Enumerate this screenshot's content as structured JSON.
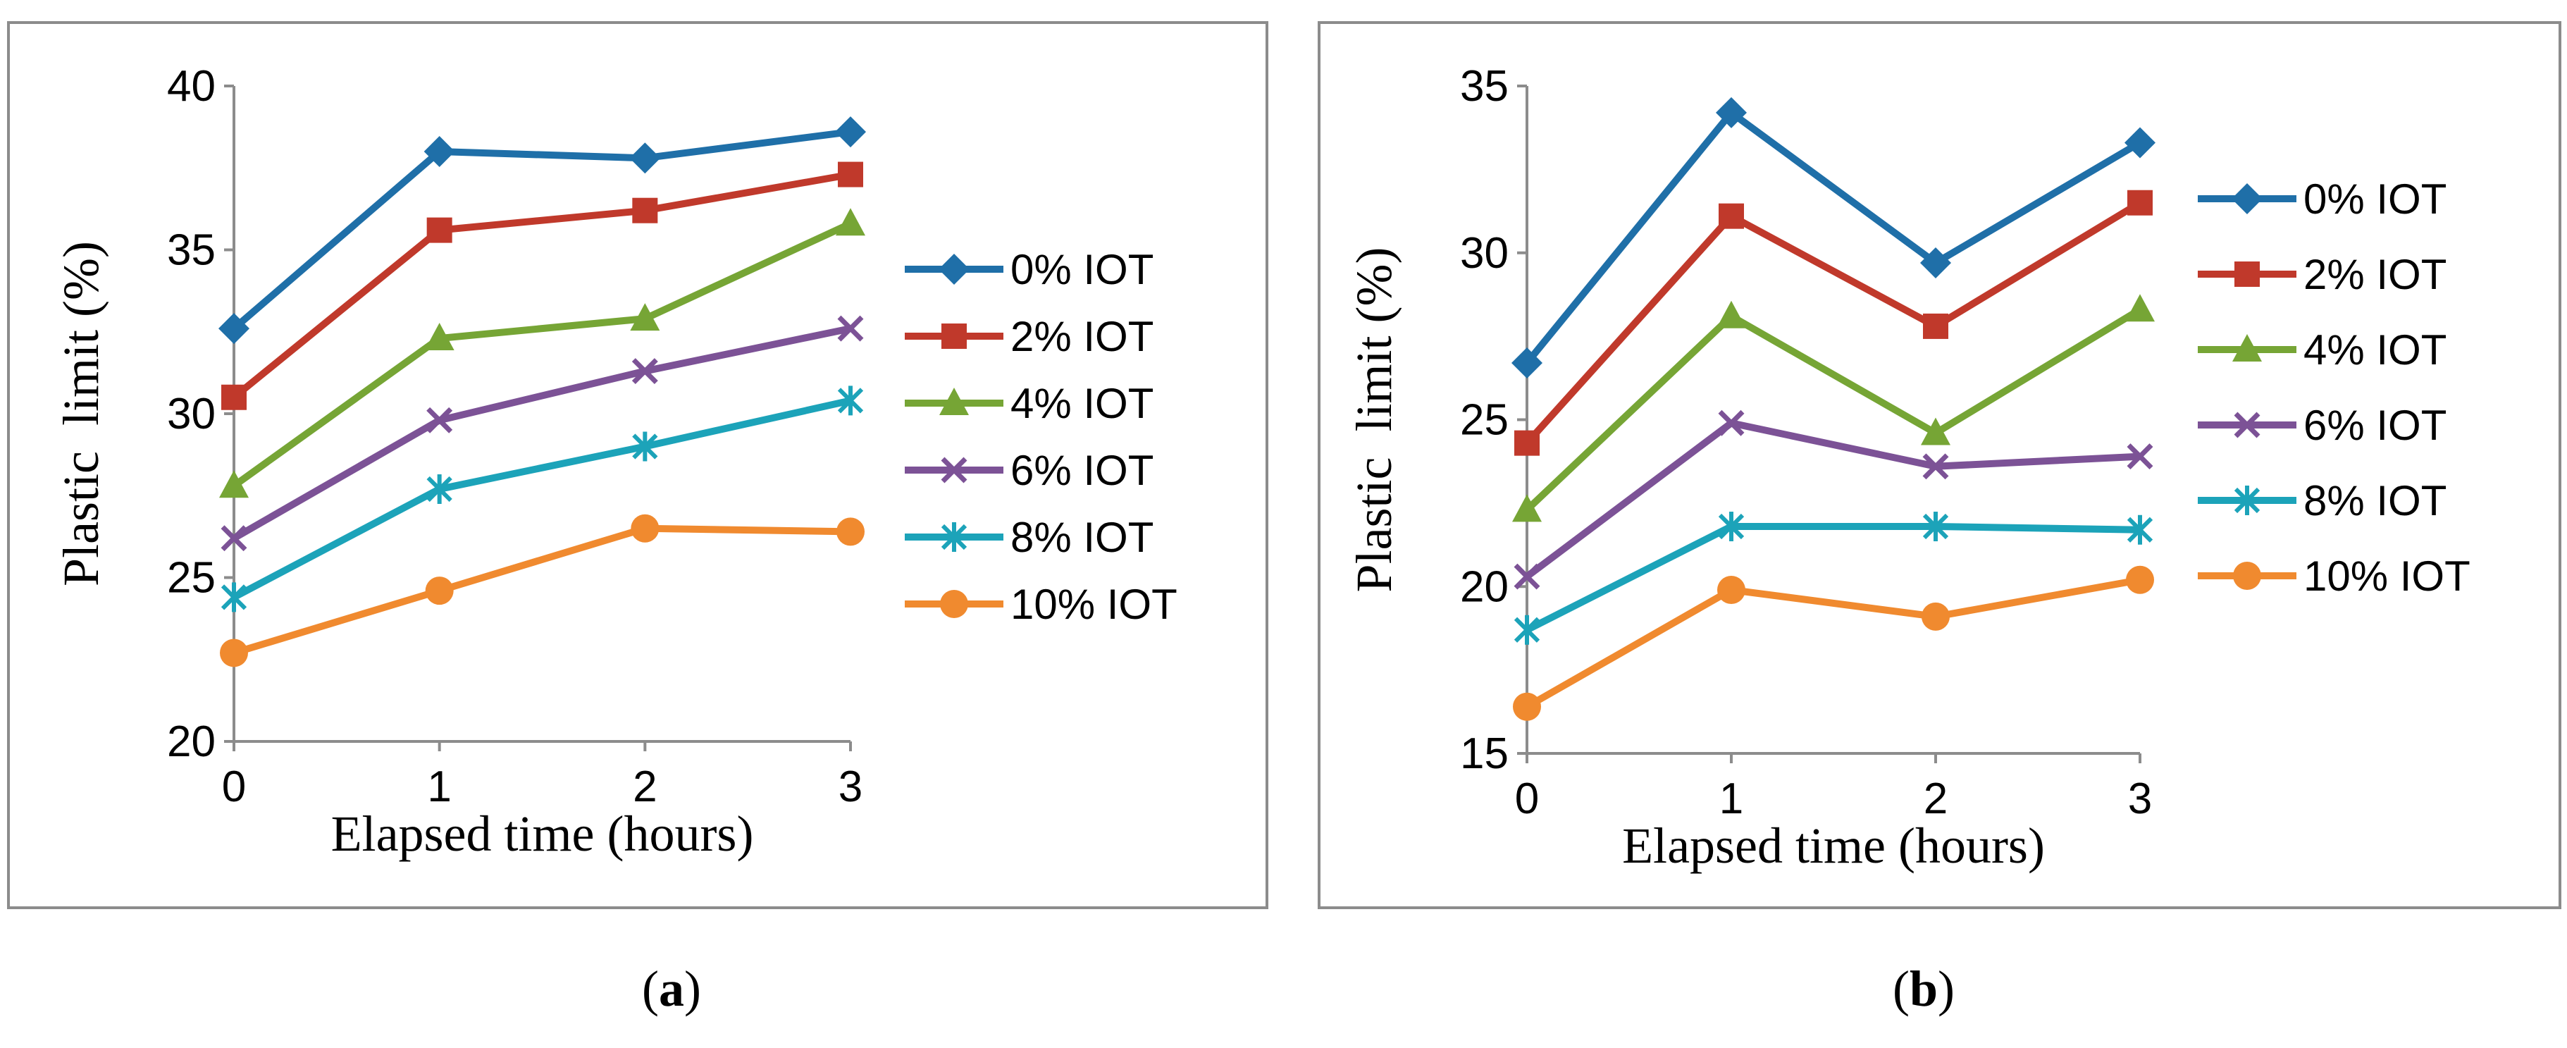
{
  "colors": {
    "series": [
      "#1F6FA8",
      "#C0392B",
      "#76A535",
      "#7C5296",
      "#1CA3B9",
      "#F08A2F"
    ],
    "axis": "#8c8c8c"
  },
  "chart_data": [
    {
      "type": "line",
      "panel_label": "a",
      "x": [
        0,
        1,
        2,
        3
      ],
      "xlabel": "Elapsed time (hours)",
      "ylabel": "Plastic  limit (%)",
      "ylim": [
        20,
        40
      ],
      "yticks": [
        20,
        25,
        30,
        35,
        40
      ],
      "xticks": [
        0,
        1,
        2,
        3
      ],
      "legend_position": "right",
      "series": [
        {
          "name": "0% IOT",
          "marker": "diamond",
          "values": [
            32.6,
            38.0,
            37.8,
            38.6
          ]
        },
        {
          "name": "2% IOT",
          "marker": "square",
          "values": [
            30.5,
            35.6,
            36.2,
            37.3
          ]
        },
        {
          "name": "4% IOT",
          "marker": "triangle",
          "values": [
            27.8,
            32.3,
            32.9,
            35.8
          ]
        },
        {
          "name": "6% IOT",
          "marker": "x",
          "values": [
            26.2,
            29.8,
            31.3,
            32.6
          ]
        },
        {
          "name": "8% IOT",
          "marker": "star",
          "values": [
            24.4,
            27.7,
            29.0,
            30.4
          ]
        },
        {
          "name": "10% IOT",
          "marker": "circle",
          "values": [
            22.7,
            24.6,
            26.5,
            26.4
          ]
        }
      ]
    },
    {
      "type": "line",
      "panel_label": "b",
      "x": [
        0,
        1,
        2,
        3
      ],
      "xlabel": "Elapsed time (hours)",
      "ylabel": "Plastic  limit (%)",
      "ylim": [
        15,
        35
      ],
      "yticks": [
        15,
        20,
        25,
        30,
        35
      ],
      "xticks": [
        0,
        1,
        2,
        3
      ],
      "legend_position": "right",
      "series": [
        {
          "name": "0% IOT",
          "marker": "diamond",
          "values": [
            26.7,
            34.2,
            29.7,
            33.3
          ]
        },
        {
          "name": "2% IOT",
          "marker": "square",
          "values": [
            24.3,
            31.1,
            27.8,
            31.5
          ]
        },
        {
          "name": "4% IOT",
          "marker": "triangle",
          "values": [
            22.3,
            28.1,
            24.6,
            28.3
          ]
        },
        {
          "name": "6% IOT",
          "marker": "x",
          "values": [
            20.3,
            24.9,
            23.6,
            23.9
          ]
        },
        {
          "name": "8% IOT",
          "marker": "star",
          "values": [
            18.7,
            21.8,
            21.8,
            21.7
          ]
        },
        {
          "name": "10% IOT",
          "marker": "circle",
          "values": [
            16.4,
            19.9,
            19.1,
            20.2
          ]
        }
      ]
    }
  ]
}
